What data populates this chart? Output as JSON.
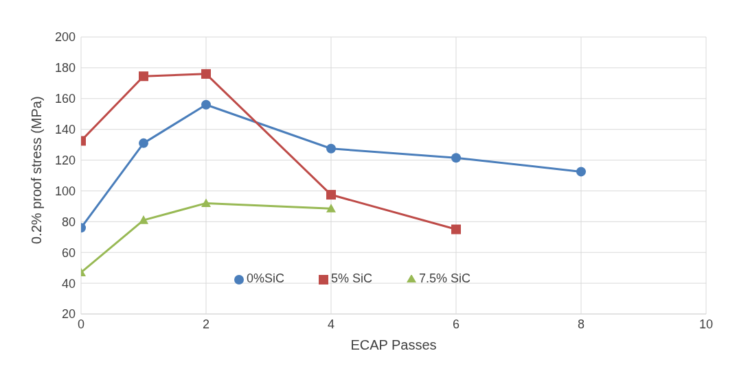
{
  "chart_data": {
    "type": "line",
    "xlabel": "ECAP Passes",
    "ylabel": "0.2% proof stress (MPa)",
    "xlim": [
      0,
      10
    ],
    "xticks": [
      0,
      2,
      4,
      6,
      8,
      10
    ],
    "ylim": [
      20,
      200
    ],
    "yticks": [
      20,
      40,
      60,
      80,
      100,
      120,
      140,
      160,
      180,
      200
    ],
    "grid": true,
    "legend": "bottom",
    "line_style": "solid",
    "series": [
      {
        "name": "0%SiC",
        "color": "#4a7ebb",
        "marker": "circle",
        "x": [
          0,
          1,
          2,
          4,
          6,
          8
        ],
        "values": [
          76,
          131,
          156,
          127.5,
          121.5,
          112.5
        ]
      },
      {
        "name": "5% SiC",
        "color": "#be4b48",
        "marker": "square",
        "x": [
          0,
          1,
          2,
          4,
          6
        ],
        "values": [
          132.5,
          174.5,
          176,
          97.5,
          75
        ]
      },
      {
        "name": "7.5% SiC",
        "color": "#98b954",
        "marker": "triangle",
        "x": [
          0,
          1,
          2,
          4
        ],
        "values": [
          47,
          81,
          92,
          88.5
        ]
      }
    ]
  }
}
